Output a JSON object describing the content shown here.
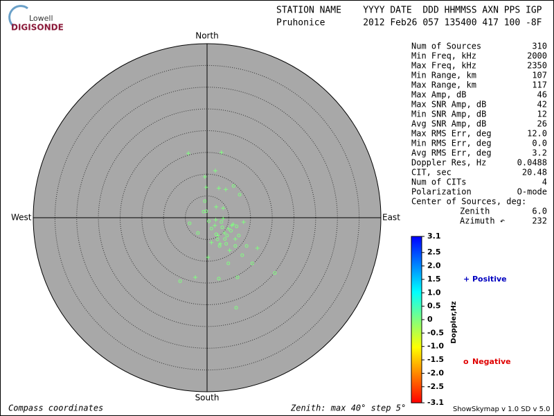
{
  "logo": {
    "top": "Lowell",
    "bottom": "DIGISONDE"
  },
  "header": {
    "line1": "STATION NAME    YYYY DATE  DDD HHMMSS AXN PPS IGP",
    "line2": "Pruhonice       2012 Feb26 057 135400 417 100 -8F"
  },
  "stats": {
    "rows": [
      [
        "Num of Sources",
        "310"
      ],
      [
        "Min Freq, kHz",
        "2000"
      ],
      [
        "Max Freq, kHz",
        "2350"
      ],
      [
        "Min Range, km",
        "107"
      ],
      [
        "Max Range, km",
        "117"
      ],
      [
        "Max Amp, dB",
        "46"
      ],
      [
        "Max SNR Amp, dB",
        "42"
      ],
      [
        "Min SNR Amp, dB",
        "12"
      ],
      [
        "Avg SNR Amp, dB",
        "26"
      ],
      [
        "Max RMS Err, deg",
        "12.0"
      ],
      [
        "Min RMS Err, deg",
        "0.0"
      ],
      [
        "Avg RMS Err, deg",
        "3.2"
      ],
      [
        "Doppler Res, Hz",
        "0.0488"
      ],
      [
        "CIT, sec",
        "20.48"
      ],
      [
        "Num of CITs",
        "4"
      ],
      [
        "Polarization",
        "O-mode"
      ]
    ],
    "center_title": "Center of Sources, deg:",
    "zenith_label": "Zenith",
    "zenith_value": "6.0",
    "azimuth_label": "Azimuth ↶",
    "azimuth_value": "232"
  },
  "chart_data": {
    "type": "skymap",
    "directions": {
      "north": "North",
      "south": "South",
      "east": "East",
      "west": "West"
    },
    "xlim": [
      -40,
      40
    ],
    "ylim": [
      -40,
      40
    ],
    "rticks": [
      5,
      10,
      15,
      20,
      25,
      30,
      35
    ],
    "series": [
      {
        "name": "Positive",
        "marker": "+",
        "color": "#80ff80",
        "legend_color": "#0000c0",
        "x": [
          -4.3,
          3.3,
          1.9,
          -0.5,
          -0.2,
          2.7,
          4.3,
          2.1,
          3.7,
          8.4,
          11.6,
          -2.7,
          0.2,
          4.9,
          6.5,
          2.5,
          3.7,
          1.8,
          5.7,
          1.0,
          4.0,
          6.0,
          3.0,
          2.0,
          5.2
        ],
        "values": [
          14.8,
          15.0,
          10.8,
          9.4,
          7.0,
          6.8,
          6.5,
          2.5,
          2.2,
          -1.0,
          -7.0,
          -13.7,
          -9.1,
          -2.5,
          -4.9,
          -4.1,
          -0.2,
          -1.8,
          -1.8,
          -5.7,
          -3.5,
          -1.5,
          -6.0,
          -0.5,
          -7.5
        ]
      },
      {
        "name": "Negative",
        "marker": "o",
        "color": "#80ff80",
        "legend_color": "#e00000",
        "x": [
          -6.2,
          6.7,
          15.6,
          7.0,
          6.1,
          7.5,
          -0.5,
          -0.8,
          -4.0,
          -2.1,
          3.3,
          4.6,
          2.9,
          4.9,
          8.1,
          2.1,
          4.1,
          7.3,
          1.0,
          6.5,
          2.7,
          10.4,
          9.1,
          -0.2,
          0.4,
          3.5,
          5.5,
          2.4,
          4.4,
          6.8
        ],
        "values": [
          -14.6,
          -20.7,
          -12.7,
          -13.7,
          7.3,
          5.3,
          3.8,
          1.4,
          -1.3,
          -3.5,
          -1.0,
          -4.1,
          -6.5,
          -10.5,
          -8.6,
          -3.8,
          -4.9,
          -4.1,
          -2.5,
          -6.5,
          -14.0,
          -10.5,
          -6.5,
          1.5,
          -0.8,
          -2.2,
          -3.0,
          -5.0,
          -6.0,
          -2.0
        ]
      }
    ],
    "colorbar": {
      "label": "Doppler,Hz",
      "lim": [
        -3.1,
        3.1
      ],
      "colors": [
        "#ff0000",
        "#ff8000",
        "#ffff00",
        "#80ff80",
        "#00ffff",
        "#0080ff",
        "#0000ff"
      ],
      "ticks": [
        3.1,
        2.5,
        {
          "value": 2,
          "label": "2.0"
        },
        1.5,
        {
          "value": 1,
          "label": "1.0"
        },
        0.5,
        0,
        -0.5,
        {
          "value": -1,
          "label": "-1.0"
        },
        -1.5,
        {
          "value": -2,
          "label": "-2.0"
        },
        -2.5,
        -3.1
      ]
    }
  },
  "footer": {
    "left": "Compass coordinates",
    "middle": "Zenith: max 40°  step 5°",
    "right": "ShowSkymap v 1.0  SD v 5.0"
  }
}
